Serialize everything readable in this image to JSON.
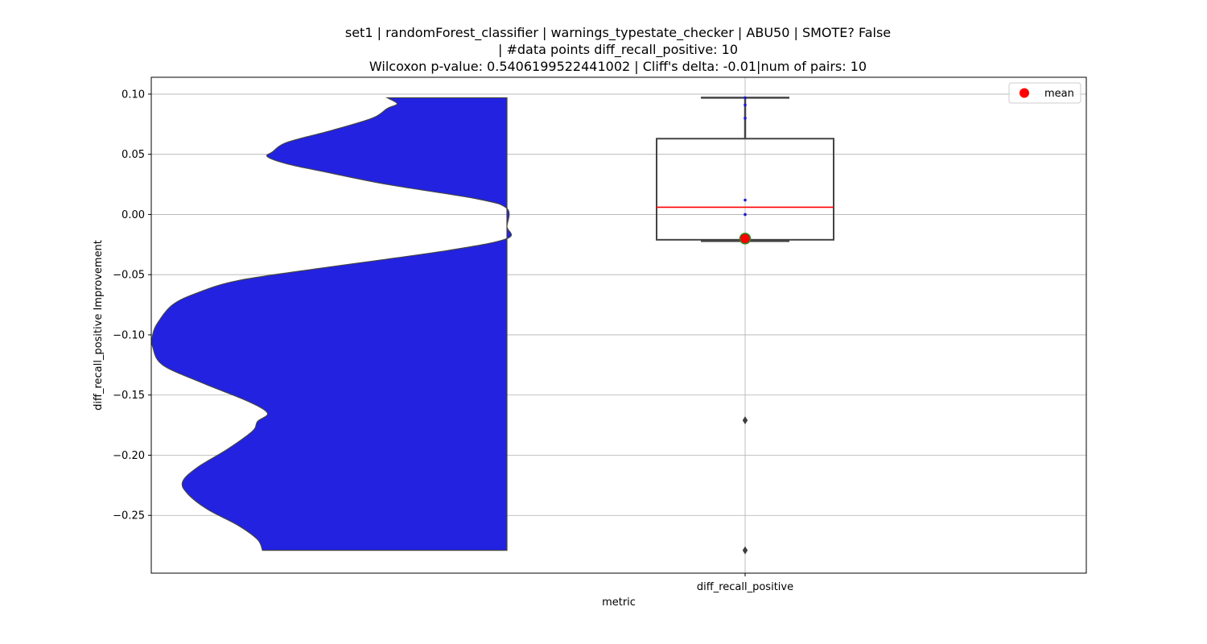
{
  "figure": {
    "title_lines": [
      "set1 | randomForest_classifier | warnings_typestate_checker | ABU50 | SMOTE? False",
      "| #data points diff_recall_positive: 10",
      "Wilcoxon p-value: 0.5406199522441002 | Cliff's delta: -0.01|num of pairs: 10"
    ]
  },
  "chart_data": {
    "type": "violin+box",
    "xlabel": "metric",
    "ylabel": "diff_recall_positive Improvement",
    "categories": [
      "diff_recall_positive"
    ],
    "ylim": [
      -0.298,
      0.114
    ],
    "yticks": [
      0.1,
      0.05,
      0.0,
      -0.05,
      -0.1,
      -0.15,
      -0.2,
      -0.25
    ],
    "ytick_labels": [
      "0.10",
      "0.05",
      "0.00",
      "−0.05",
      "−0.10",
      "−0.15",
      "−0.20",
      "−0.25"
    ],
    "grid": true,
    "legend": {
      "placement": "top-right",
      "entries": [
        {
          "label": "mean",
          "color": "#ff0000",
          "marker": "circle"
        }
      ]
    },
    "violin": {
      "color": "#2222e0",
      "edge_color": "#444444",
      "range": [
        -0.279,
        0.097
      ],
      "density_profile": [
        [
          0.097,
          0.24
        ],
        [
          0.092,
          0.22
        ],
        [
          0.088,
          0.24
        ],
        [
          0.08,
          0.27
        ],
        [
          0.07,
          0.35
        ],
        [
          0.06,
          0.44
        ],
        [
          0.052,
          0.47
        ],
        [
          0.048,
          0.48
        ],
        [
          0.042,
          0.44
        ],
        [
          0.035,
          0.36
        ],
        [
          0.025,
          0.24
        ],
        [
          0.013,
          0.06
        ],
        [
          0.005,
          0.0
        ],
        [
          -0.01,
          0.0
        ],
        [
          -0.02,
          0.0
        ],
        [
          -0.03,
          0.12
        ],
        [
          -0.045,
          0.38
        ],
        [
          -0.055,
          0.54
        ],
        [
          -0.065,
          0.62
        ],
        [
          -0.075,
          0.67
        ],
        [
          -0.09,
          0.7
        ],
        [
          -0.1,
          0.71
        ],
        [
          -0.11,
          0.71
        ],
        [
          -0.125,
          0.69
        ],
        [
          -0.14,
          0.61
        ],
        [
          -0.155,
          0.52
        ],
        [
          -0.165,
          0.48
        ],
        [
          -0.172,
          0.5
        ],
        [
          -0.18,
          0.51
        ],
        [
          -0.195,
          0.56
        ],
        [
          -0.21,
          0.62
        ],
        [
          -0.222,
          0.65
        ],
        [
          -0.232,
          0.64
        ],
        [
          -0.245,
          0.6
        ],
        [
          -0.258,
          0.54
        ],
        [
          -0.27,
          0.5
        ],
        [
          -0.279,
          0.49
        ]
      ]
    },
    "box": {
      "q1": -0.021,
      "median": 0.006,
      "q3": 0.063,
      "whisker_low": -0.022,
      "whisker_high": 0.097,
      "median_color": "#ff0000",
      "edge_color": "#444444"
    },
    "outliers": [
      -0.171,
      -0.279
    ],
    "points": [
      0.097,
      0.091,
      0.08,
      0.012,
      0.0,
      -0.02,
      -0.021
    ],
    "mean": -0.02
  }
}
